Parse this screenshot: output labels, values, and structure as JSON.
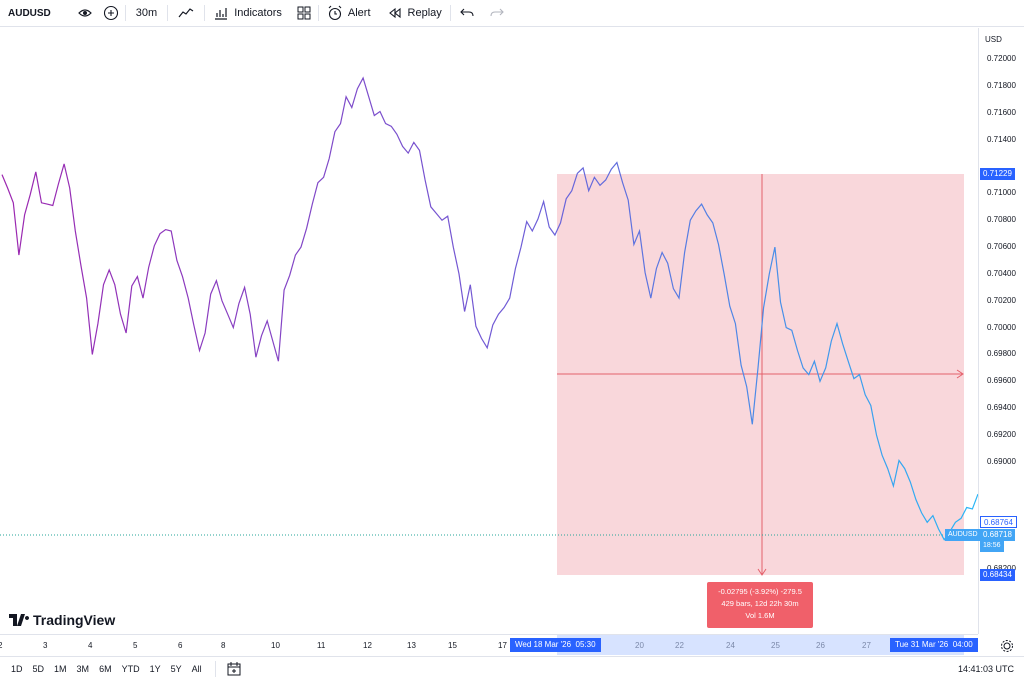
{
  "toolbar": {
    "symbol": "AUDUSD",
    "interval": "30m",
    "indicators_label": "Indicators",
    "alert_label": "Alert",
    "replay_label": "Replay"
  },
  "price_axis": {
    "currency": "USD",
    "ticks": [
      "0.72000",
      "0.71800",
      "0.71600",
      "0.71400",
      "0.71229",
      "0.71000",
      "0.70800",
      "0.70600",
      "0.70400",
      "0.70200",
      "0.70000",
      "0.69800",
      "0.69600",
      "0.69400",
      "0.69200",
      "0.69000",
      "0.68764",
      "0.68718",
      "0.68434",
      "0.68200"
    ],
    "tick_values": [
      0.72,
      0.718,
      0.716,
      0.714,
      0.71229,
      0.71,
      0.708,
      0.706,
      0.704,
      0.702,
      0.7,
      0.698,
      0.696,
      0.694,
      0.692,
      0.69,
      0.68764,
      0.68718,
      0.68434,
      0.682
    ],
    "labels": {
      "range_top": "0.71229",
      "prev_close": "0.68764",
      "symbol_tag": "AUDUSD",
      "last_price": "0.68718",
      "countdown": "18:56",
      "range_bottom": "0.68434"
    }
  },
  "time_axis": {
    "ticks": [
      "2",
      "3",
      "4",
      "5",
      "6",
      "8",
      "10",
      "11",
      "12",
      "13",
      "15",
      "17",
      "20",
      "22",
      "24",
      "25",
      "26",
      "27"
    ],
    "start_label": "Wed 18 Mar '26",
    "start_time": "05:30",
    "end_label": "Tue 31 Mar '26",
    "end_time": "04:00"
  },
  "measure": {
    "line1": "-0.02795 (-3.92%) -279.5",
    "line2": "429 bars, 12d 22h 30m",
    "line3": "Vol 1.6M"
  },
  "bottom_bar": {
    "ranges": [
      "1D",
      "5D",
      "1M",
      "3M",
      "6M",
      "YTD",
      "1Y",
      "5Y",
      "All"
    ],
    "clock": "14:41:03 UTC"
  },
  "logo_text": "TradingView",
  "colors": {
    "line_start": "#9c27b0",
    "line_end": "#29b6f6",
    "range_fill": "#f7c9cf",
    "measure_bg": "#f0606a",
    "accent": "#2962ff"
  },
  "chart_data": {
    "type": "line",
    "series_values": [
      0.7114,
      0.7104,
      0.7093,
      0.7054,
      0.7084,
      0.7099,
      0.7116,
      0.7093,
      0.7092,
      0.7091,
      0.7107,
      0.7122,
      0.7104,
      0.7072,
      0.7046,
      0.7022,
      0.698,
      0.7003,
      0.7032,
      0.7043,
      0.7032,
      0.701,
      0.6996,
      0.7031,
      0.7038,
      0.7022,
      0.7045,
      0.7061,
      0.707,
      0.7073,
      0.7072,
      0.705,
      0.7038,
      0.7022,
      0.7002,
      0.6983,
      0.6996,
      0.7025,
      0.7035,
      0.702,
      0.701,
      0.7,
      0.7018,
      0.703,
      0.701,
      0.6978,
      0.6994,
      0.7005,
      0.699,
      0.6975,
      0.7028,
      0.7039,
      0.7054,
      0.706,
      0.7074,
      0.7092,
      0.7108,
      0.7112,
      0.7126,
      0.7146,
      0.7152,
      0.7172,
      0.7164,
      0.7178,
      0.7186,
      0.7172,
      0.7158,
      0.7161,
      0.7152,
      0.715,
      0.7144,
      0.7135,
      0.713,
      0.7138,
      0.7132,
      0.711,
      0.709,
      0.7085,
      0.708,
      0.7083,
      0.706,
      0.704,
      0.7012,
      0.7032,
      0.7001,
      0.6992,
      0.6985,
      0.7002,
      0.701,
      0.7015,
      0.7022,
      0.7044,
      0.706,
      0.7079,
      0.7072,
      0.7081,
      0.7094,
      0.7075,
      0.7069,
      0.7078,
      0.7096,
      0.7102,
      0.7115,
      0.7119,
      0.7102,
      0.7112,
      0.7106,
      0.711,
      0.7118,
      0.7123,
      0.7108,
      0.7095,
      0.7062,
      0.7072,
      0.7041,
      0.7022,
      0.7044,
      0.7056,
      0.7048,
      0.7029,
      0.7022,
      0.7056,
      0.708,
      0.7087,
      0.7092,
      0.7084,
      0.7078,
      0.7062,
      0.704,
      0.7016,
      0.7003,
      0.6972,
      0.6956,
      0.6928,
      0.697,
      0.7015,
      0.704,
      0.706,
      0.7019,
      0.7,
      0.6998,
      0.6983,
      0.697,
      0.6965,
      0.6975,
      0.696,
      0.697,
      0.699,
      0.7003,
      0.6988,
      0.6975,
      0.6962,
      0.6965,
      0.695,
      0.6942,
      0.692,
      0.6905,
      0.6895,
      0.6882,
      0.6901,
      0.6895,
      0.6885,
      0.6872,
      0.6862,
      0.6855,
      0.686,
      0.685,
      0.6842,
      0.6848,
      0.6855,
      0.6858,
      0.6866,
      0.6865,
      0.6876
    ],
    "ylim": [
      0.6812,
      0.7218
    ]
  }
}
